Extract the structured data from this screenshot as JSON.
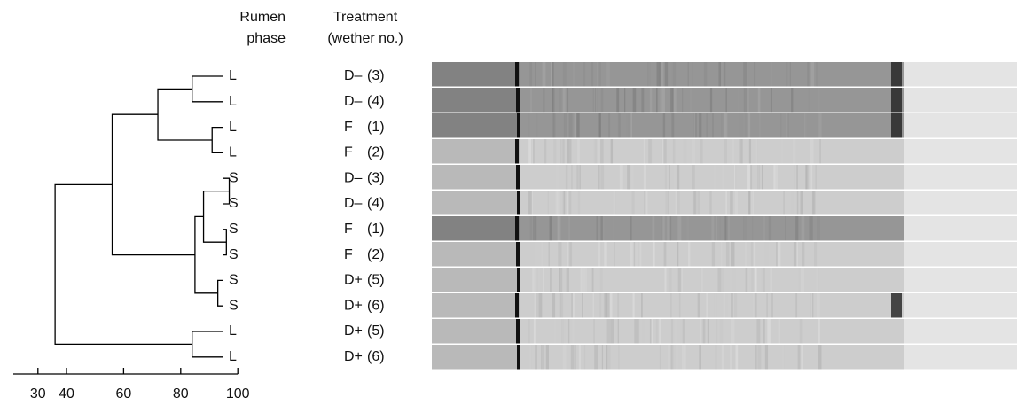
{
  "chart_data": {
    "type": "dendrogram",
    "headers": {
      "phase": [
        "Rumen",
        "phase"
      ],
      "treatment": [
        "Treatment",
        "(wether no.)"
      ]
    },
    "leaves": [
      {
        "phase": "L",
        "treatment": "D–",
        "wether": "(3)"
      },
      {
        "phase": "L",
        "treatment": "D–",
        "wether": "(4)"
      },
      {
        "phase": "L",
        "treatment": "F",
        "wether": "(1)"
      },
      {
        "phase": "L",
        "treatment": "F",
        "wether": "(2)"
      },
      {
        "phase": "S",
        "treatment": "D–",
        "wether": "(3)"
      },
      {
        "phase": "S",
        "treatment": "D–",
        "wether": "(4)"
      },
      {
        "phase": "S",
        "treatment": "F",
        "wether": "(1)"
      },
      {
        "phase": "S",
        "treatment": "F",
        "wether": "(2)"
      },
      {
        "phase": "S",
        "treatment": "D+",
        "wether": "(5)"
      },
      {
        "phase": "S",
        "treatment": "D+",
        "wether": "(6)"
      },
      {
        "phase": "L",
        "treatment": "D+",
        "wether": "(5)"
      },
      {
        "phase": "L",
        "treatment": "D+",
        "wether": "(6)"
      }
    ],
    "merges": [
      {
        "children": [
          0,
          1
        ],
        "similarity": 84
      },
      {
        "children": [
          2,
          3
        ],
        "similarity": 91
      },
      {
        "children": [
          12,
          13
        ],
        "similarity": 72
      },
      {
        "children": [
          4,
          5
        ],
        "similarity": 97
      },
      {
        "children": [
          6,
          7
        ],
        "similarity": 96
      },
      {
        "children": [
          15,
          16
        ],
        "similarity": 88
      },
      {
        "children": [
          8,
          9
        ],
        "similarity": 93
      },
      {
        "children": [
          17,
          18
        ],
        "similarity": 85
      },
      {
        "children": [
          14,
          19
        ],
        "similarity": 56
      },
      {
        "children": [
          10,
          11
        ],
        "similarity": 84
      },
      {
        "children": [
          20,
          21
        ],
        "similarity": 36
      }
    ],
    "xlim": [
      30,
      100
    ],
    "xticks": [
      30,
      40,
      60,
      80,
      100
    ]
  }
}
